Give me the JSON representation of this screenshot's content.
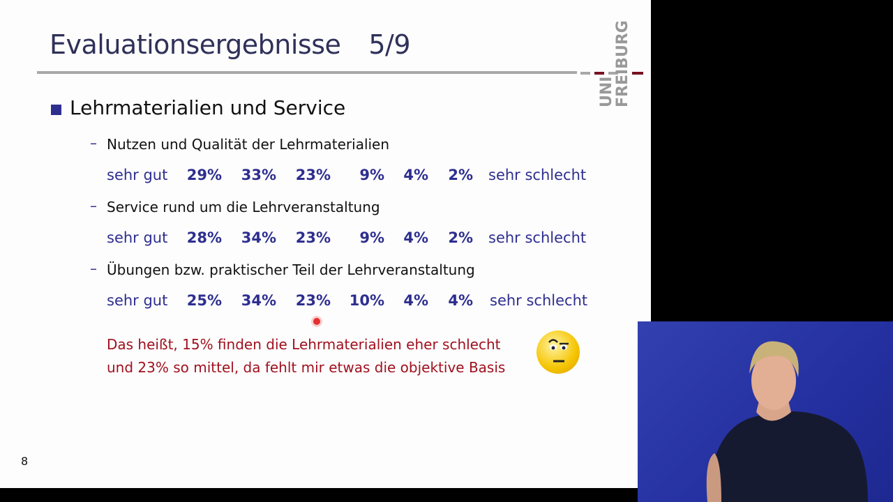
{
  "slide": {
    "title": "Evaluationsergebnisse",
    "title_page": "5/9",
    "logo_text": "UNI FREIBURG",
    "heading": "Lehrmaterialien und Service",
    "scale_left": "sehr gut",
    "scale_right": "sehr schlecht",
    "items": [
      {
        "label": "Nutzen und Qualität der Lehrmaterialien",
        "values": [
          "29%",
          "33%",
          "23%",
          "9%",
          "4%",
          "2%"
        ]
      },
      {
        "label": "Service rund um die Lehrveranstaltung",
        "values": [
          "28%",
          "34%",
          "23%",
          "9%",
          "4%",
          "2%"
        ]
      },
      {
        "label": "Übungen bzw. praktischer Teil der Lehrveranstaltung",
        "values": [
          "25%",
          "34%",
          "23%",
          "10%",
          "4%",
          "4%"
        ]
      }
    ],
    "note_line1": "Das heißt, 15% finden die Lehrmaterialien eher schlecht",
    "note_line2": "und 23% so mittel, da fehlt mir etwas die objektive Basis",
    "emoji_icon": "skeptical-face-emoji",
    "page_number": "8",
    "colors": {
      "title": "#2f3159",
      "accent": "#2e2e8f",
      "note": "#a0101e",
      "logo_red": "#7a1020"
    }
  }
}
